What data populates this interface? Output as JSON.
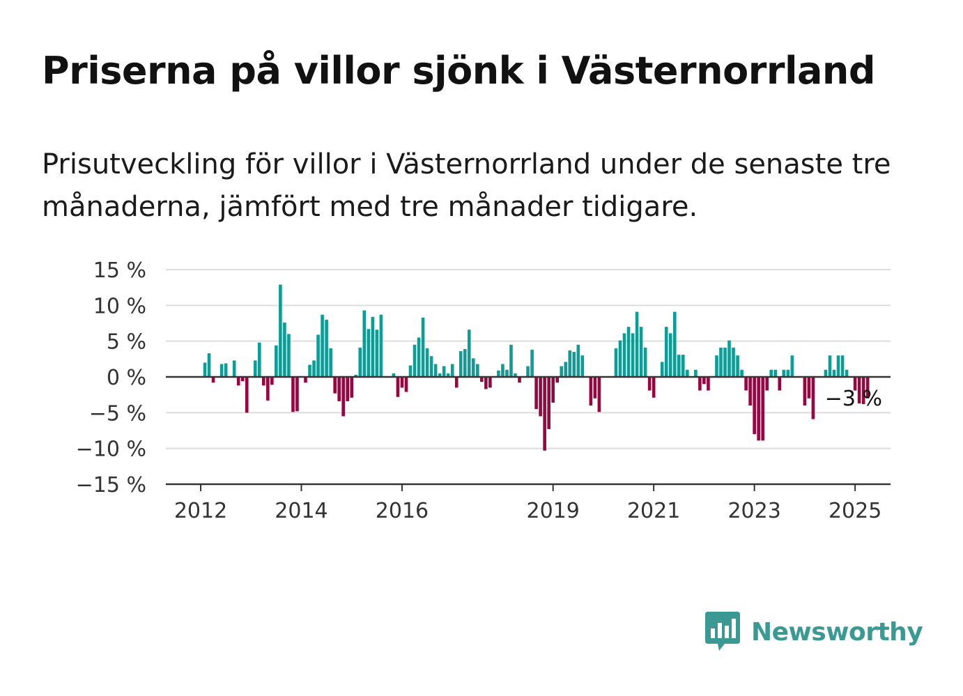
{
  "header": {
    "title": "Priserna på villor sjönk i Västernorrland",
    "subtitle": "Prisutveckling för villor i Västernorrland under de senaste tre månaderna, jämfört med tre månader tidigare."
  },
  "brand": {
    "name": "Newsworthy",
    "icon": "newsworthy-logo-icon",
    "color": "#3a9a93"
  },
  "colors": {
    "positive": "#0c9d97",
    "negative": "#99063f",
    "grid": "#dcdcdc",
    "axis": "#333333"
  },
  "chart_data": {
    "type": "bar",
    "x_start": "2012-01",
    "interval": "month",
    "y_tick_labels": [
      "15 %",
      "10 %",
      "5 %",
      "0 %",
      "−5 %",
      "−10 %",
      "−15 %"
    ],
    "y_ticks": [
      15,
      10,
      5,
      0,
      -5,
      -10,
      -15
    ],
    "ylim": [
      -15,
      15
    ],
    "x_tick_labels": [
      "2012",
      "2014",
      "2016",
      "2019",
      "2021",
      "2023",
      "2025"
    ],
    "x_ticks": [
      "2012-01",
      "2014-01",
      "2016-01",
      "2019-01",
      "2021-01",
      "2023-01",
      "2025-01"
    ],
    "grid": true,
    "annotation": {
      "text": "−3 %",
      "at": "2025-01"
    },
    "values": [
      0,
      2,
      3.3,
      -0.8,
      0,
      1.8,
      1.9,
      0,
      2.3,
      -1.2,
      -0.6,
      -5,
      0,
      2.3,
      4.8,
      -1.2,
      -3.3,
      -1.1,
      4.4,
      12.9,
      7.6,
      6,
      -4.9,
      -4.8,
      0,
      -0.8,
      1.7,
      2.3,
      5.9,
      8.7,
      8,
      4,
      -2.3,
      -3.4,
      -5.5,
      -3.4,
      -2.9,
      0.3,
      4.1,
      9.3,
      6.7,
      8.4,
      6.6,
      8.7,
      0,
      0,
      0.5,
      -2.8,
      -1.5,
      -2.1,
      1.6,
      4.5,
      5.5,
      8.3,
      4,
      2.9,
      1.8,
      0.5,
      1.5,
      0.5,
      1.8,
      -1.5,
      3.6,
      3.9,
      6.6,
      2.6,
      1.8,
      -0.7,
      -1.7,
      -1.5,
      0.1,
      0.9,
      1.8,
      1,
      4.5,
      0.5,
      -0.8,
      0,
      1.5,
      3.8,
      -4.5,
      -5.5,
      -10.3,
      -7.3,
      -3.6,
      -0.8,
      1.5,
      2.1,
      3.7,
      3.5,
      4.5,
      3,
      0,
      -4,
      -3,
      -4.9,
      0,
      0,
      0,
      4,
      5.1,
      6.1,
      7,
      6.1,
      9.1,
      7,
      4.1,
      -1.9,
      -2.9,
      0,
      2.1,
      7,
      6.1,
      9.1,
      3.1,
      3.1,
      1,
      0,
      1,
      -1.9,
      -1,
      -1.9,
      0,
      3,
      4.1,
      4.1,
      5.1,
      4.1,
      3,
      1,
      -1.9,
      -4,
      -8,
      -8.9,
      -8.9,
      -1.9,
      1,
      1,
      -1.9,
      1,
      1,
      3,
      0,
      0,
      -4,
      -3,
      -5.9,
      0,
      0,
      1,
      3,
      1,
      3,
      3,
      1,
      0,
      -1.9,
      -3.7,
      -3.8,
      -3
    ]
  }
}
